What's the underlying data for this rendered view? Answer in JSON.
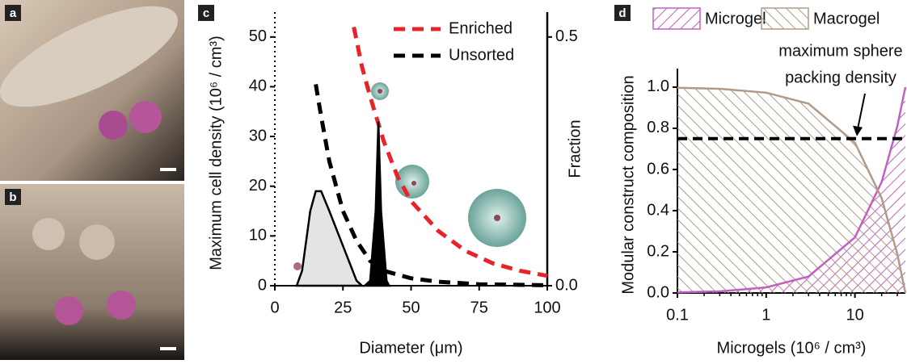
{
  "panels": [
    {
      "label": "a"
    },
    {
      "label": "b"
    }
  ],
  "chart_data": [
    {
      "type": "line",
      "panel_label": "c",
      "xlabel": "Diameter (μm)",
      "ylabel": "Maximum cell density (10⁶ / cm³)",
      "y2label": "Fraction",
      "xlim": [
        0,
        100
      ],
      "xticks": [
        0,
        25,
        50,
        75,
        100
      ],
      "ylim": [
        0,
        55
      ],
      "yticks": [
        0,
        10,
        20,
        30,
        40,
        50
      ],
      "y2lim": [
        0,
        0.55
      ],
      "y2ticks": [
        {
          "value": 0,
          "label": "0.0"
        },
        {
          "value": 0.5,
          "label": "0.5"
        }
      ],
      "series": [
        {
          "name": "Enriched",
          "color": "#e8242a",
          "dashed": true,
          "x": [
            29,
            32,
            35,
            40,
            45,
            50,
            60,
            70,
            80,
            90,
            100
          ],
          "values": [
            52,
            44,
            38,
            29,
            22,
            17,
            11,
            7,
            4.5,
            3,
            2
          ]
        },
        {
          "name": "Unsorted",
          "color": "#000000",
          "dashed": true,
          "x": [
            15,
            17,
            20,
            25,
            30,
            35,
            40,
            50,
            60,
            75,
            100
          ],
          "values": [
            40.5,
            34,
            25,
            15,
            9,
            5,
            3,
            1.5,
            0.8,
            0.3,
            0.1
          ]
        },
        {
          "color": "#000000",
          "fill": "#e4e4e4",
          "axis": "y2",
          "x": [
            8,
            10,
            13,
            15,
            17,
            20,
            25,
            30,
            32
          ],
          "values": [
            0,
            0.03,
            0.15,
            0.19,
            0.19,
            0.15,
            0.08,
            0.01,
            0
          ]
        },
        {
          "color": "#000000",
          "fill": "#000000",
          "axis": "y2",
          "x": [
            33,
            35,
            37,
            38,
            39,
            41,
            42
          ],
          "values": [
            0,
            0.01,
            0.15,
            0.33,
            0.15,
            0.01,
            0
          ]
        }
      ]
    },
    {
      "type": "area",
      "panel_label": "d",
      "log_x": true,
      "xlabel": "Microgels (10⁶ / cm³)",
      "ylabel": "Modular construct composition",
      "xlim": [
        0.1,
        37
      ],
      "xticks": [
        0.1,
        1,
        10
      ],
      "ylim": [
        0,
        1.09
      ],
      "yticks": [
        {
          "value": 0,
          "label": "0.0"
        },
        0.2,
        0.4,
        0.6,
        0.8,
        {
          "value": 1,
          "label": "1.0"
        }
      ],
      "hline": {
        "value": 0.75,
        "annotation": [
          "maximum sphere",
          "packing density"
        ]
      },
      "series": [
        {
          "name": "Microgel",
          "color": "#c060c0",
          "x": [
            0.1,
            0.3,
            1,
            3,
            10,
            20,
            30,
            37
          ],
          "values": [
            0.003,
            0.008,
            0.027,
            0.08,
            0.27,
            0.54,
            0.81,
            1.0
          ]
        },
        {
          "name": "Macrogel",
          "color": "#b09a88",
          "x": [
            0.1,
            0.3,
            1,
            3,
            10,
            20,
            30,
            37
          ],
          "values": [
            0.997,
            0.992,
            0.973,
            0.92,
            0.73,
            0.46,
            0.19,
            0
          ]
        }
      ]
    }
  ]
}
